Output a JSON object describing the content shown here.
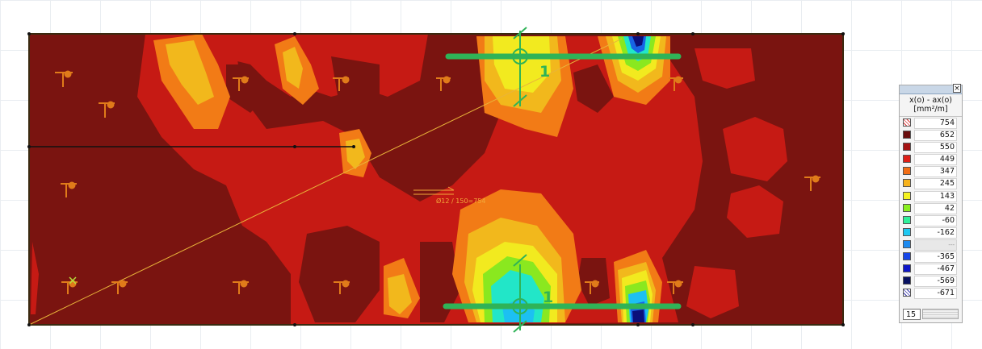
{
  "legend": {
    "close_glyph": "×",
    "title_line1": "x(o) - ax(o)",
    "title_line2": "[mm²/m]",
    "steps": "15",
    "rows": [
      {
        "value": "754",
        "color": "#ffffff"
      },
      {
        "value": "652",
        "color": "#6a0d0d"
      },
      {
        "value": "550",
        "color": "#a51212"
      },
      {
        "value": "449",
        "color": "#df1f17"
      },
      {
        "value": "347",
        "color": "#f26e15"
      },
      {
        "value": "245",
        "color": "#f6b21c"
      },
      {
        "value": "143",
        "color": "#f4f21f"
      },
      {
        "value": "42",
        "color": "#8af020"
      },
      {
        "value": "-60",
        "color": "#2ff09a"
      },
      {
        "value": "-162",
        "color": "#1ec8f2"
      },
      {
        "value": "---",
        "color": "#1c8af0"
      },
      {
        "value": "-365",
        "color": "#1646e8"
      },
      {
        "value": "-467",
        "color": "#0e16c9"
      },
      {
        "value": "-569",
        "color": "#061060"
      },
      {
        "value": "-671",
        "color": "#ffffff"
      }
    ]
  },
  "plot": {
    "section_label_top": "1",
    "section_label_bottom": "1",
    "rebar_annotation": "Ø12 / 150=754",
    "colors": {
      "base": "#7a1410",
      "red": "#c61a14",
      "bright_red": "#e62a18",
      "orange": "#f27b16",
      "gold": "#f2b81c",
      "yellow": "#f2ea1f",
      "green": "#8ae81f",
      "cyan": "#22e6c8",
      "light_blue": "#1cc0f2",
      "blue": "#1764e6",
      "dark_blue": "#0b0f7a",
      "section_green": "#2fb357",
      "outline": "#3a2a10"
    }
  }
}
